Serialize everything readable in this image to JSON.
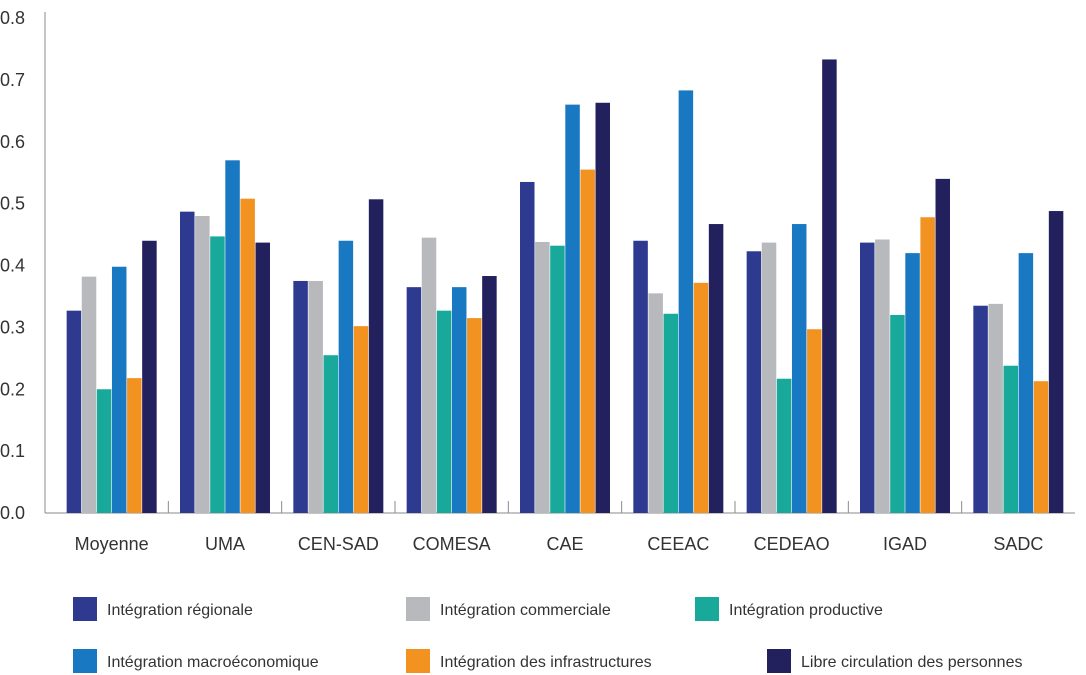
{
  "chart_data": {
    "type": "bar",
    "title": "",
    "xlabel": "",
    "ylabel": "",
    "ylim": [
      0,
      0.8
    ],
    "yticks": [
      "0.0",
      "0.1",
      "0.2",
      "0.3",
      "0.4",
      "0.5",
      "0.6",
      "0.7",
      "0.8"
    ],
    "grid": false,
    "legend_position": "bottom",
    "categories": [
      "Moyenne",
      "UMA",
      "CEN-SAD",
      "COMESA",
      "CAE",
      "CEEAC",
      "CEDEAO",
      "IGAD",
      "SADC"
    ],
    "series": [
      {
        "name": "Intégration régionale",
        "color": "#2e3a8f",
        "values": [
          0.327,
          0.487,
          0.375,
          0.365,
          0.535,
          0.44,
          0.423,
          0.437,
          0.335
        ]
      },
      {
        "name": "Intégration commerciale",
        "color": "#b8b9bc",
        "values": [
          0.382,
          0.48,
          0.375,
          0.445,
          0.438,
          0.355,
          0.437,
          0.442,
          0.338
        ]
      },
      {
        "name": "Intégration productive",
        "color": "#19a99a",
        "values": [
          0.2,
          0.447,
          0.255,
          0.327,
          0.432,
          0.322,
          0.217,
          0.32,
          0.238
        ]
      },
      {
        "name": "Intégration macroéconomique",
        "color": "#1878c2",
        "values": [
          0.398,
          0.57,
          0.44,
          0.365,
          0.66,
          0.683,
          0.467,
          0.42,
          0.42
        ]
      },
      {
        "name": "Intégration des infrastructures",
        "color": "#f29221",
        "values": [
          0.218,
          0.508,
          0.302,
          0.315,
          0.555,
          0.372,
          0.297,
          0.478,
          0.213
        ]
      },
      {
        "name": "Libre circulation des personnes",
        "color": "#23205e",
        "values": [
          0.44,
          0.437,
          0.507,
          0.383,
          0.663,
          0.467,
          0.733,
          0.54,
          0.488
        ]
      }
    ]
  }
}
